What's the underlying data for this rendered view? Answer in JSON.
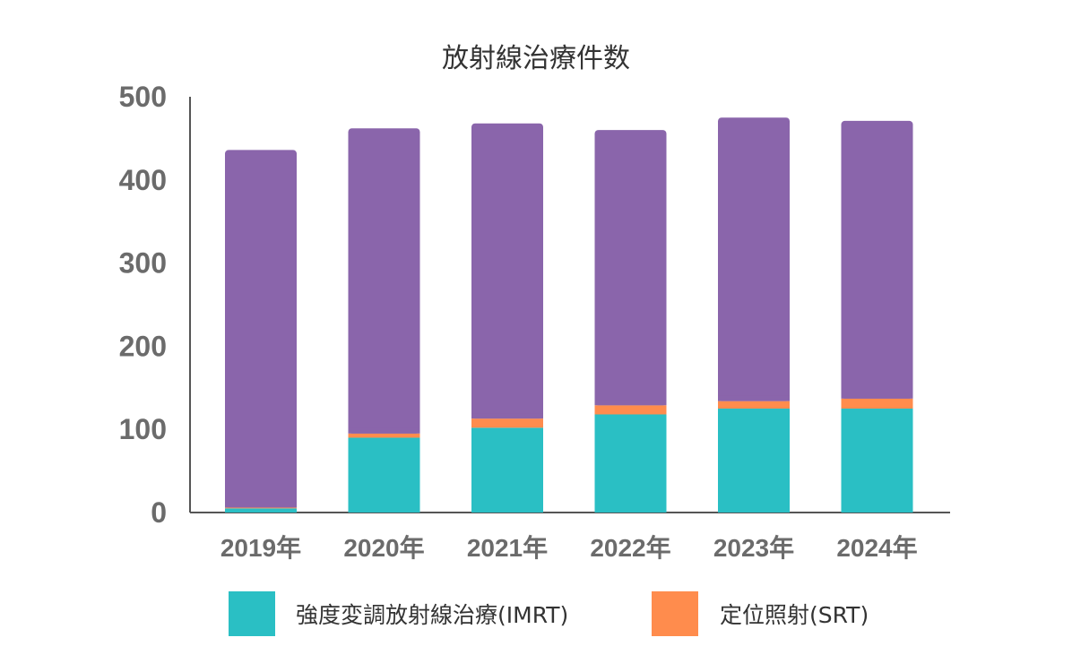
{
  "chart_data": {
    "type": "bar",
    "stacked": true,
    "title": "放射線治療件数",
    "categories": [
      "2019年",
      "2020年",
      "2021年",
      "2022年",
      "2023年",
      "2024年"
    ],
    "series": [
      {
        "name": "強度変調放射線治療(IMRT)",
        "color": "#2ABFC4",
        "values": [
          5,
          90,
          102,
          118,
          125,
          125
        ]
      },
      {
        "name": "定位照射(SRT)",
        "color": "#FF8C4D",
        "values": [
          1,
          5,
          11,
          11,
          9,
          12
        ]
      },
      {
        "color": "#8A65AB",
        "values": [
          430,
          367,
          355,
          331,
          341,
          334
        ]
      }
    ],
    "ylim": [
      0,
      500
    ],
    "yticks": [
      "0",
      "100",
      "200",
      "300",
      "400",
      "500"
    ],
    "grid": false,
    "legend": "bottom"
  }
}
